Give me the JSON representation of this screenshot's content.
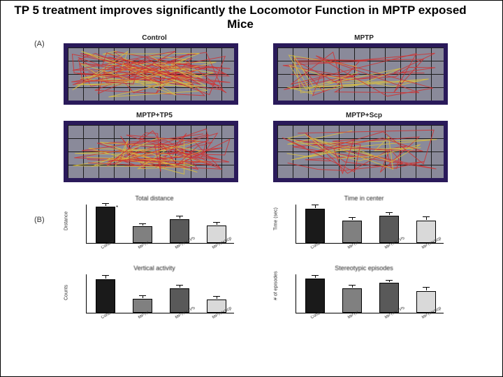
{
  "title": "TP 5 treatment improves significantly the Locomotor Function in MPTP exposed Mice",
  "panel_labels": {
    "a": "(A)",
    "b": "(B)"
  },
  "tracks": {
    "border_color": "#2a1a5a",
    "bg_color": "#8a8a9a",
    "grid_color": "#1a1a1a",
    "path_colors": {
      "red": "#d03030",
      "yellow": "#d8c040"
    },
    "cells": [
      {
        "title": "Control",
        "density": 1.0
      },
      {
        "title": "MPTP",
        "density": 0.5
      },
      {
        "title": "MPTP+TP5",
        "density": 0.85
      },
      {
        "title": "MPTP+Scp",
        "density": 0.55
      }
    ]
  },
  "charts": {
    "xcats": [
      "Control",
      "MPTP",
      "MPTP+TP5",
      "MPTP+Scp"
    ],
    "bar_colors": [
      "#1a1a1a",
      "#808080",
      "#595959",
      "#d9d9d9"
    ],
    "axis_color": "#000000",
    "plots": [
      {
        "title": "Total distance",
        "ylabel": "Distance",
        "ymax": 100,
        "values": [
          92,
          42,
          60,
          44
        ],
        "errors": [
          6,
          5,
          6,
          6
        ],
        "sig_mark": "*"
      },
      {
        "title": "Time in center",
        "ylabel": "Time (sec)",
        "ymax": 100,
        "values": [
          88,
          58,
          70,
          58
        ],
        "errors": [
          6,
          5,
          5,
          6
        ]
      },
      {
        "title": "Vertical activity",
        "ylabel": "Counts",
        "ymax": 100,
        "values": [
          86,
          36,
          62,
          34
        ],
        "errors": [
          6,
          5,
          6,
          6
        ]
      },
      {
        "title": "Stereotypic episodes",
        "ylabel": "# of episodes",
        "ymax": 100,
        "values": [
          88,
          62,
          76,
          56
        ],
        "errors": [
          5,
          5,
          5,
          6
        ]
      }
    ]
  }
}
